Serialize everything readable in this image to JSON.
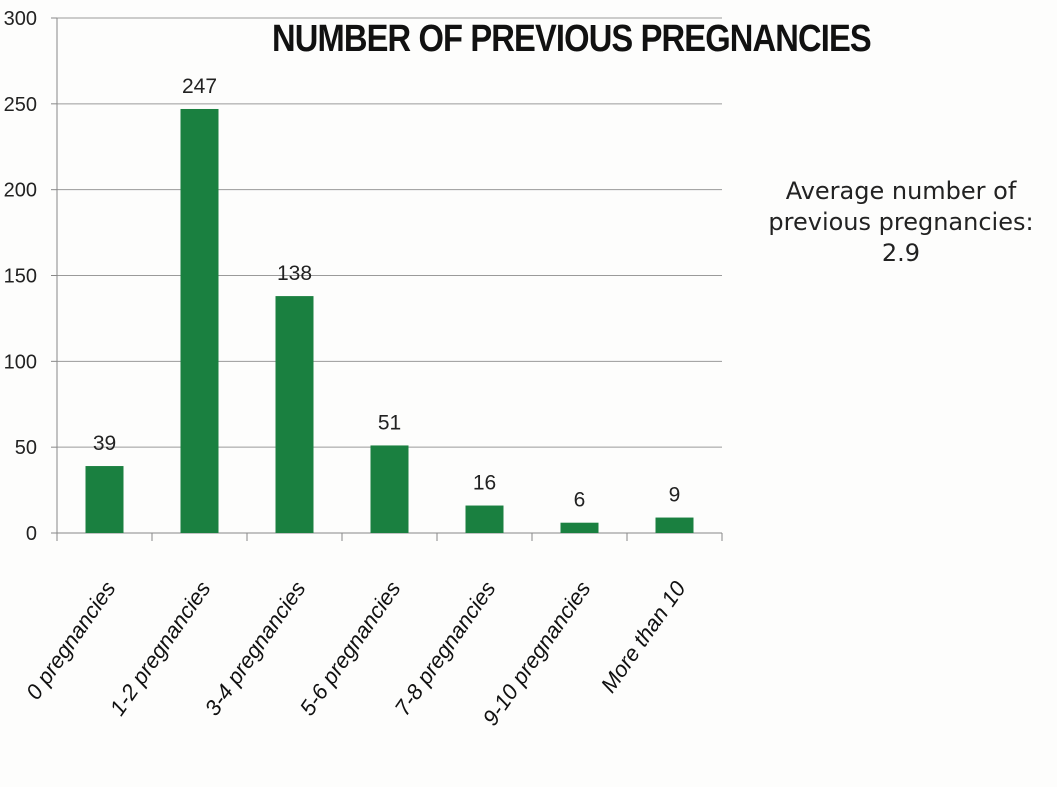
{
  "chart_data": {
    "type": "bar",
    "title": "NUMBER OF PREVIOUS PREGNANCIES",
    "categories": [
      "0 pregnancies",
      "1-2 pregnancies",
      "3-4 pregnancies",
      "5-6 pregnancies",
      "7-8 pregnancies",
      "9-10 pregnancies",
      "More than 10"
    ],
    "values": [
      39,
      247,
      138,
      51,
      16,
      6,
      9
    ],
    "ylim": [
      0,
      300
    ],
    "yticks": [
      0,
      50,
      100,
      150,
      200,
      250,
      300
    ],
    "xlabel": "",
    "ylabel": "",
    "grid": true,
    "data_labels": true,
    "bar_color": "#1a8040",
    "annotation": {
      "line1": "Average number of",
      "line2": "previous pregnancies:",
      "line3": "2.9"
    }
  }
}
